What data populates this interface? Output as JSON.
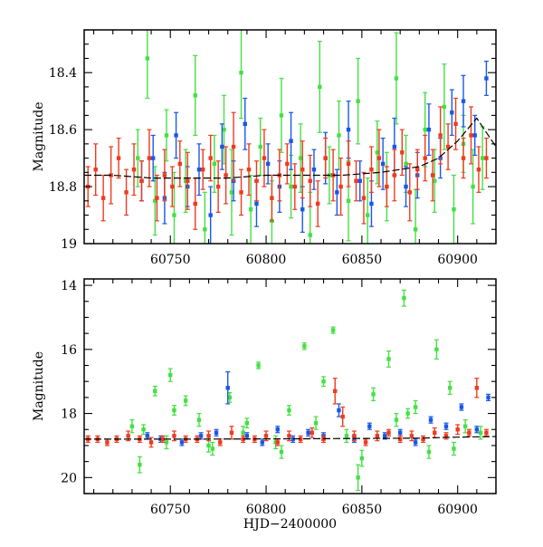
{
  "colors": {
    "green": "#44e044",
    "blue": "#1858e8",
    "red": "#f03a1e",
    "model": "#000000",
    "frame": "#000000"
  },
  "chart_data": [
    {
      "type": "scatter",
      "panel": "top",
      "title": "",
      "xlabel": "",
      "ylabel": "Magnitude",
      "xlim": [
        60705,
        60920
      ],
      "ylim": [
        19.0,
        18.25
      ],
      "y_inverted": true,
      "x_ticks": [
        60750,
        60800,
        60850,
        60900
      ],
      "y_ticks": [
        18.4,
        18.6,
        18.8,
        19
      ],
      "y_tick_labels": [
        "18.4",
        "18.6",
        "18.8",
        "19"
      ],
      "x_tick_labels": [
        "60750",
        "60800",
        "60850",
        "60900"
      ],
      "error_bars": true,
      "model_curve": {
        "x": [
          60705,
          60720,
          60740,
          60760,
          60780,
          60800,
          60820,
          60840,
          60860,
          60880,
          60890,
          60900,
          60910,
          60920
        ],
        "y": [
          18.76,
          18.76,
          18.77,
          18.77,
          18.77,
          18.76,
          18.76,
          18.76,
          18.75,
          18.73,
          18.7,
          18.64,
          18.56,
          18.66
        ]
      },
      "series": [
        {
          "color": "green",
          "x": [
            60733,
            60738,
            60742,
            60748,
            60752,
            60758,
            60763,
            60768,
            60773,
            60778,
            60782,
            60787,
            60792,
            60797,
            60803,
            60808,
            60813,
            60818,
            60823,
            60828,
            60833,
            60838,
            60843,
            60848,
            60853,
            60858,
            60863,
            60868,
            60873,
            60878,
            60883,
            60888,
            60893,
            60898,
            60903,
            60908,
            60913
          ],
          "y": [
            18.7,
            18.35,
            18.85,
            18.62,
            18.9,
            18.78,
            18.48,
            18.95,
            18.72,
            18.6,
            18.82,
            18.4,
            18.88,
            18.66,
            18.92,
            18.55,
            18.8,
            18.7,
            18.97,
            18.45,
            18.76,
            18.62,
            18.85,
            18.5,
            18.9,
            18.68,
            18.8,
            18.42,
            18.72,
            18.95,
            18.6,
            18.78,
            18.52,
            18.88,
            18.65,
            18.8,
            18.7
          ],
          "err": [
            0.1,
            0.14,
            0.12,
            0.09,
            0.15,
            0.11,
            0.14,
            0.13,
            0.1,
            0.12,
            0.15,
            0.16,
            0.12,
            0.1,
            0.14,
            0.13,
            0.11,
            0.12,
            0.15,
            0.16,
            0.1,
            0.12,
            0.14,
            0.15,
            0.13,
            0.11,
            0.12,
            0.16,
            0.1,
            0.14,
            0.13,
            0.11,
            0.15,
            0.12,
            0.1,
            0.13,
            0.11
          ]
        },
        {
          "color": "blue",
          "x": [
            60735,
            60741,
            60747,
            60753,
            60759,
            60765,
            60771,
            60777,
            60783,
            60789,
            60795,
            60801,
            60807,
            60813,
            60819,
            60825,
            60831,
            60837,
            60843,
            60849,
            60855,
            60861,
            60867,
            60873,
            60879,
            60885,
            60891,
            60897,
            60903,
            60909,
            60915
          ],
          "y": [
            18.78,
            18.7,
            18.84,
            18.62,
            18.8,
            18.74,
            18.9,
            18.66,
            18.78,
            18.58,
            18.86,
            18.72,
            18.8,
            18.64,
            18.88,
            18.74,
            18.7,
            18.82,
            18.6,
            18.78,
            18.86,
            18.72,
            18.66,
            18.8,
            18.76,
            18.6,
            18.7,
            18.54,
            18.5,
            18.62,
            18.42
          ],
          "err": [
            0.07,
            0.08,
            0.09,
            0.08,
            0.07,
            0.09,
            0.1,
            0.08,
            0.07,
            0.09,
            0.08,
            0.07,
            0.09,
            0.1,
            0.08,
            0.07,
            0.09,
            0.08,
            0.1,
            0.07,
            0.08,
            0.09,
            0.1,
            0.07,
            0.08,
            0.09,
            0.07,
            0.08,
            0.09,
            0.07,
            0.06
          ]
        },
        {
          "color": "red",
          "x": [
            60707,
            60711,
            60715,
            60719,
            60723,
            60727,
            60731,
            60735,
            60739,
            60743,
            60747,
            60751,
            60755,
            60759,
            60763,
            60767,
            60771,
            60775,
            60779,
            60783,
            60787,
            60791,
            60795,
            60799,
            60803,
            60807,
            60811,
            60815,
            60819,
            60823,
            60827,
            60831,
            60835,
            60839,
            60843,
            60847,
            60851,
            60855,
            60859,
            60863,
            60867,
            60871,
            60875,
            60879,
            60883,
            60887,
            60891,
            60895,
            60899,
            60903,
            60907,
            60911,
            60915
          ],
          "y": [
            18.8,
            18.74,
            18.84,
            18.76,
            18.7,
            18.82,
            18.74,
            18.78,
            18.7,
            18.84,
            18.76,
            18.8,
            18.72,
            18.78,
            18.86,
            18.74,
            18.7,
            18.8,
            18.76,
            18.66,
            18.82,
            18.74,
            18.78,
            18.7,
            18.84,
            18.76,
            18.72,
            18.8,
            18.74,
            18.78,
            18.86,
            18.7,
            18.76,
            18.8,
            18.72,
            18.78,
            18.84,
            18.74,
            18.7,
            18.8,
            18.76,
            18.68,
            18.82,
            18.74,
            18.7,
            18.76,
            18.62,
            18.66,
            18.58,
            18.7,
            18.62,
            18.74,
            18.7
          ],
          "err": [
            0.07,
            0.09,
            0.08,
            0.1,
            0.07,
            0.08,
            0.09,
            0.07,
            0.1,
            0.08,
            0.09,
            0.07,
            0.08,
            0.1,
            0.09,
            0.07,
            0.08,
            0.09,
            0.1,
            0.12,
            0.08,
            0.09,
            0.07,
            0.1,
            0.08,
            0.09,
            0.07,
            0.08,
            0.1,
            0.09,
            0.08,
            0.07,
            0.09,
            0.1,
            0.08,
            0.07,
            0.09,
            0.08,
            0.1,
            0.07,
            0.09,
            0.08,
            0.1,
            0.07,
            0.08,
            0.09,
            0.1,
            0.08,
            0.09,
            0.07,
            0.1,
            0.08,
            0.07
          ]
        }
      ]
    },
    {
      "type": "scatter",
      "panel": "bottom",
      "title": "",
      "xlabel": "HJD−2400000",
      "ylabel": "Magnitude",
      "xlim": [
        60705,
        60920
      ],
      "ylim": [
        20.5,
        13.8
      ],
      "y_inverted": true,
      "x_ticks": [
        60750,
        60800,
        60850,
        60900
      ],
      "y_ticks": [
        14,
        16,
        18,
        20
      ],
      "y_tick_labels": [
        "14",
        "16",
        "18",
        "20"
      ],
      "x_tick_labels": [
        "60750",
        "60800",
        "60850",
        "60900"
      ],
      "error_bars": true,
      "model_curve": {
        "x": [
          60705,
          60760,
          60820,
          60880,
          60900,
          60920
        ],
        "y": [
          18.8,
          18.8,
          18.79,
          18.77,
          18.74,
          18.72
        ]
      },
      "series": [
        {
          "color": "green",
          "x": [
            60730,
            60734,
            60742,
            60748,
            60750,
            60758,
            60765,
            60772,
            60781,
            60788,
            60796,
            60805,
            60812,
            60820,
            60826,
            60835,
            60842,
            60848,
            60856,
            60864,
            60868,
            60872,
            60878,
            60885,
            60889,
            60896,
            60904,
            60912,
            60736,
            60752,
            60770,
            60790,
            60808,
            60830,
            60850,
            60874,
            60898
          ],
          "y": [
            18.4,
            19.6,
            17.3,
            18.9,
            16.8,
            17.6,
            18.2,
            19.1,
            17.5,
            18.6,
            16.5,
            18.9,
            17.9,
            15.9,
            18.3,
            15.4,
            18.7,
            20.0,
            17.4,
            16.3,
            18.2,
            14.4,
            17.8,
            19.2,
            16.0,
            17.2,
            18.4,
            18.6,
            18.5,
            17.9,
            19.0,
            18.3,
            19.2,
            17.0,
            19.4,
            18.0,
            19.1
          ],
          "err": [
            0.2,
            0.25,
            0.15,
            0.2,
            0.2,
            0.15,
            0.2,
            0.2,
            0.15,
            0.2,
            0.1,
            0.2,
            0.15,
            0.1,
            0.2,
            0.1,
            0.2,
            0.4,
            0.2,
            0.25,
            0.2,
            0.25,
            0.2,
            0.2,
            0.3,
            0.2,
            0.2,
            0.2,
            0.15,
            0.15,
            0.2,
            0.15,
            0.2,
            0.15,
            0.25,
            0.15,
            0.2
          ]
        },
        {
          "color": "blue",
          "x": [
            60738,
            60745,
            60756,
            60766,
            60774,
            60780,
            60790,
            60798,
            60806,
            60814,
            60822,
            60830,
            60838,
            60846,
            60854,
            60862,
            60870,
            60878,
            60886,
            60894,
            60902,
            60910,
            60916
          ],
          "y": [
            18.7,
            18.8,
            18.9,
            18.7,
            18.6,
            17.2,
            18.7,
            18.9,
            18.5,
            18.8,
            18.6,
            18.7,
            17.9,
            18.8,
            18.4,
            18.7,
            18.6,
            18.9,
            18.2,
            18.4,
            17.8,
            18.5,
            17.5
          ],
          "err": [
            0.1,
            0.1,
            0.1,
            0.1,
            0.1,
            0.5,
            0.1,
            0.1,
            0.1,
            0.1,
            0.1,
            0.1,
            0.2,
            0.1,
            0.1,
            0.1,
            0.1,
            0.1,
            0.1,
            0.1,
            0.1,
            0.1,
            0.1
          ]
        },
        {
          "color": "red",
          "x": [
            60707,
            60712,
            60717,
            60722,
            60728,
            60734,
            60740,
            60746,
            60752,
            60758,
            60764,
            60770,
            60776,
            60782,
            60788,
            60794,
            60800,
            60806,
            60812,
            60818,
            60824,
            60830,
            60836,
            60840,
            60846,
            60852,
            60858,
            60864,
            60870,
            60876,
            60882,
            60888,
            60894,
            60900,
            60906,
            60910,
            60915
          ],
          "y": [
            18.8,
            18.8,
            18.9,
            18.8,
            18.7,
            18.8,
            18.9,
            18.8,
            18.7,
            18.8,
            18.8,
            18.7,
            18.9,
            18.6,
            18.8,
            18.8,
            18.7,
            18.9,
            18.7,
            18.8,
            18.6,
            18.8,
            17.3,
            18.1,
            18.7,
            18.9,
            18.7,
            18.6,
            18.8,
            18.7,
            18.8,
            18.6,
            18.7,
            18.5,
            18.6,
            17.2,
            18.6
          ],
          "err": [
            0.1,
            0.1,
            0.1,
            0.1,
            0.15,
            0.1,
            0.15,
            0.1,
            0.15,
            0.1,
            0.1,
            0.15,
            0.1,
            0.2,
            0.1,
            0.1,
            0.15,
            0.1,
            0.15,
            0.1,
            0.15,
            0.1,
            0.4,
            0.3,
            0.15,
            0.1,
            0.15,
            0.1,
            0.1,
            0.15,
            0.1,
            0.15,
            0.1,
            0.15,
            0.1,
            0.3,
            0.1
          ]
        }
      ]
    }
  ]
}
